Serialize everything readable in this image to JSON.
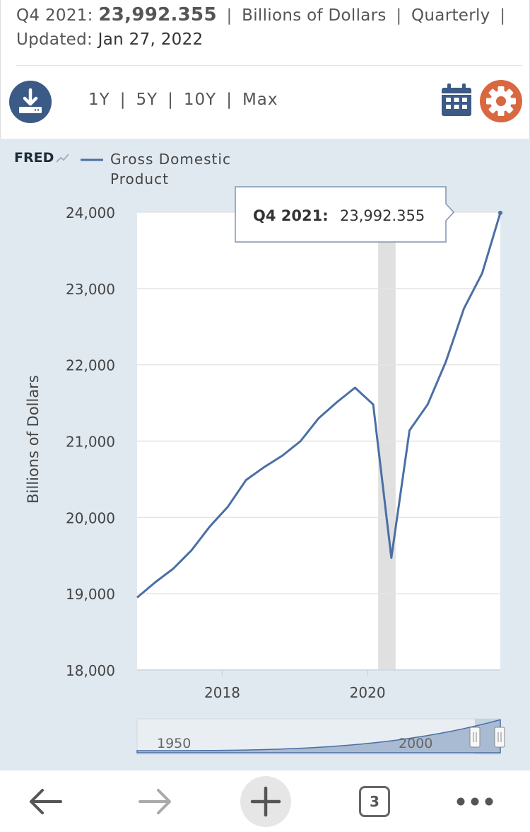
{
  "header": {
    "period": "Q4 2021:",
    "value": "23,992.355",
    "units": "Billions of Dollars",
    "frequency": "Quarterly",
    "updated_label": "Updated:",
    "updated_date": "Jan 27, 2022",
    "separator": "|"
  },
  "toolbar": {
    "download_icon": "download-icon",
    "ranges": [
      "1Y",
      "5Y",
      "10Y",
      "Max"
    ],
    "calendar_icon": "calendar-icon",
    "settings_icon": "gear-icon"
  },
  "colors": {
    "line": "#4a6fa5",
    "panel_bg": "#e1e9f0",
    "download_btn": "#3b5a86",
    "gear_btn": "#d9673f",
    "recession": "#e0e0e0"
  },
  "brand": {
    "logo_text": "FRED"
  },
  "tooltip": {
    "label": "Q4 2021:",
    "value": "23,992.355"
  },
  "chart_data": {
    "type": "line",
    "legend": "Gross Domestic Product",
    "ylabel": "Billions of Dollars",
    "ylim": [
      18000,
      24000
    ],
    "yticks": [
      "18,000",
      "19,000",
      "20,000",
      "21,000",
      "22,000",
      "23,000",
      "24,000"
    ],
    "xticks": [
      "2018",
      "2020"
    ],
    "x": [
      "Q4 2016",
      "Q1 2017",
      "Q2 2017",
      "Q3 2017",
      "Q4 2017",
      "Q1 2018",
      "Q2 2018",
      "Q3 2018",
      "Q4 2018",
      "Q1 2019",
      "Q2 2019",
      "Q3 2019",
      "Q4 2019",
      "Q1 2020",
      "Q2 2020",
      "Q3 2020",
      "Q4 2020",
      "Q1 2021",
      "Q2 2021",
      "Q3 2021",
      "Q4 2021"
    ],
    "series": [
      {
        "name": "Gross Domestic Product",
        "values": [
          18950,
          19150,
          19330,
          19570,
          19880,
          20140,
          20490,
          20660,
          20810,
          21000,
          21300,
          21510,
          21700,
          21480,
          19470,
          21140,
          21480,
          22040,
          22740,
          23200,
          23992.355
        ]
      }
    ],
    "recession": {
      "start": "Q1 2020",
      "end": "Q2 2020"
    },
    "navigator": {
      "labels": [
        "1950",
        "2000"
      ]
    },
    "grid": true,
    "legend_position": "top-left"
  },
  "browser_nav": {
    "back_icon": "back-arrow-icon",
    "forward_icon": "forward-arrow-icon",
    "new_tab_icon": "plus-icon",
    "tab_count": "3",
    "menu_icon": "more-icon"
  }
}
